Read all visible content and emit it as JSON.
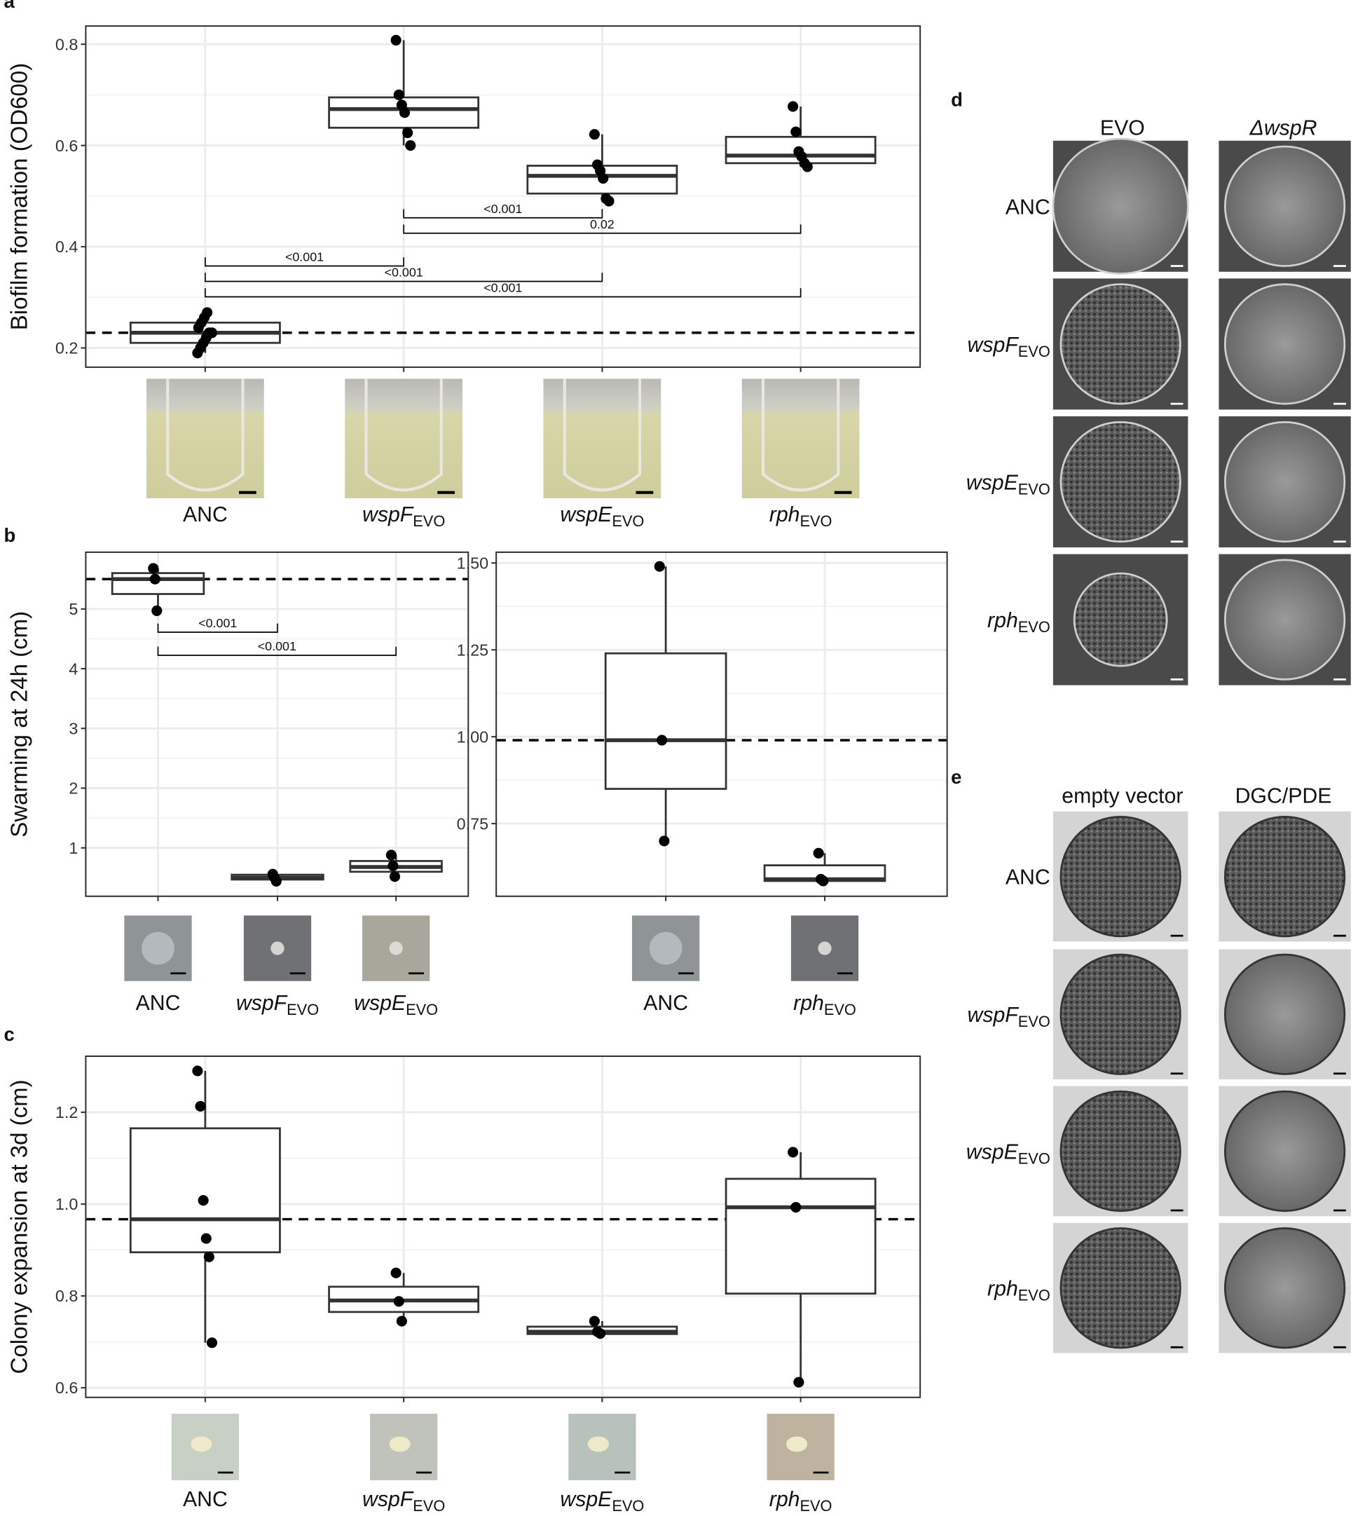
{
  "chart_data": [
    {
      "panel": "a",
      "type": "box",
      "y_label": "Biofilm formation (OD600)",
      "categories": [
        "ANC",
        {
          "text": "wspF",
          "sub": "EVO"
        },
        {
          "text": "wspE",
          "sub": "EVO"
        },
        {
          "text": "rph",
          "sub": "EVO"
        }
      ],
      "ylim": [
        0.162,
        0.836
      ],
      "yticks": [
        0.2,
        0.4,
        0.6,
        0.8
      ],
      "grid": true,
      "reference_line": 0.23,
      "boxes": [
        {
          "q1": 0.21,
          "median": 0.23,
          "q3": 0.25,
          "whisker_low": 0.19,
          "whisker_high": 0.27,
          "points": [
            0.19,
            0.2,
            0.21,
            0.22,
            0.23,
            0.23,
            0.24,
            0.25,
            0.26,
            0.27
          ]
        },
        {
          "q1": 0.635,
          "median": 0.672,
          "q3": 0.695,
          "whisker_low": 0.6,
          "whisker_high": 0.808,
          "points": [
            0.808,
            0.7,
            0.68,
            0.665,
            0.625,
            0.6
          ]
        },
        {
          "q1": 0.505,
          "median": 0.54,
          "q3": 0.56,
          "whisker_low": 0.49,
          "whisker_high": 0.622,
          "points": [
            0.622,
            0.562,
            0.55,
            0.535,
            0.495,
            0.49
          ]
        },
        {
          "q1": 0.565,
          "median": 0.58,
          "q3": 0.617,
          "whisker_low": 0.558,
          "whisker_high": 0.677,
          "points": [
            0.677,
            0.627,
            0.588,
            0.578,
            0.565,
            0.558
          ]
        }
      ],
      "comparisons": [
        {
          "from": 1,
          "to": 2,
          "label": "<0.001"
        },
        {
          "from": 1,
          "to": 3,
          "label": "0.02"
        },
        {
          "from": 0,
          "to": 1,
          "label": "<0.001"
        },
        {
          "from": 0,
          "to": 2,
          "label": "<0.001"
        },
        {
          "from": 0,
          "to": 3,
          "label": "<0.001"
        }
      ]
    },
    {
      "panel": "b",
      "type": "box",
      "y_label": "Swarming at 24h (cm)",
      "categories": [
        "ANC",
        {
          "text": "wspF",
          "sub": "EVO"
        },
        {
          "text": "wspE",
          "sub": "EVO"
        }
      ],
      "ylim": [
        0.19,
        5.95
      ],
      "yticks": [
        1,
        2,
        3,
        4,
        5
      ],
      "grid": true,
      "reference_line": 5.5,
      "boxes": [
        {
          "q1": 5.25,
          "median": 5.5,
          "q3": 5.6,
          "whisker_low": 4.97,
          "whisker_high": 5.68,
          "points": [
            5.68,
            5.5,
            4.97
          ]
        },
        {
          "q1": 0.47,
          "median": 0.5,
          "q3": 0.55,
          "whisker_low": 0.44,
          "whisker_high": 0.56,
          "points": [
            0.56,
            0.5,
            0.44
          ]
        },
        {
          "q1": 0.6,
          "median": 0.68,
          "q3": 0.78,
          "whisker_low": 0.52,
          "whisker_high": 0.88,
          "points": [
            0.88,
            0.7,
            0.52
          ]
        }
      ],
      "comparisons": [
        {
          "from": 0,
          "to": 1,
          "label": "<0.001"
        },
        {
          "from": 0,
          "to": 2,
          "label": "<0.001"
        }
      ]
    },
    {
      "type": "box",
      "categories": [
        "ANC",
        {
          "text": "rph",
          "sub": "EVO"
        }
      ],
      "ylim": [
        0.541,
        1.531
      ],
      "yticks": [
        0.75,
        {
          "value": 1,
          "label": "1.00"
        },
        1.25,
        {
          "value": 1.5,
          "label": "1.50"
        }
      ],
      "grid": true,
      "reference_line": 0.99,
      "boxes": [
        {
          "q1": 0.85,
          "median": 0.99,
          "q3": 1.24,
          "whisker_low": 0.7,
          "whisker_high": 1.49,
          "points": [
            1.49,
            0.99,
            0.7
          ]
        },
        {
          "q1": 0.585,
          "median": 0.59,
          "q3": 0.63,
          "whisker_low": 0.585,
          "whisker_high": 0.665,
          "points": [
            0.665,
            0.59,
            0.585
          ]
        }
      ]
    },
    {
      "panel": "c",
      "type": "box",
      "y_label": "Colony expansion at 3d (cm)",
      "categories": [
        "ANC",
        {
          "text": "wspF",
          "sub": "EVO"
        },
        {
          "text": "wspE",
          "sub": "EVO"
        },
        {
          "text": "rph",
          "sub": "EVO"
        }
      ],
      "ylim": [
        0.579,
        1.322
      ],
      "yticks": [
        0.6,
        0.8,
        {
          "value": 1,
          "label": "1.0"
        },
        1.2
      ],
      "grid": true,
      "reference_line": 0.967,
      "boxes": [
        {
          "q1": 0.895,
          "median": 0.967,
          "q3": 1.165,
          "whisker_low": 0.698,
          "whisker_high": 1.29,
          "points": [
            1.29,
            1.213,
            1.008,
            0.925,
            0.885,
            0.698
          ]
        },
        {
          "q1": 0.765,
          "median": 0.79,
          "q3": 0.82,
          "whisker_low": 0.745,
          "whisker_high": 0.85,
          "points": [
            0.85,
            0.788,
            0.745
          ]
        },
        {
          "q1": 0.717,
          "median": 0.722,
          "q3": 0.733,
          "whisker_low": 0.717,
          "whisker_high": 0.745,
          "points": [
            0.745,
            0.722,
            0.718
          ]
        },
        {
          "q1": 0.805,
          "median": 0.993,
          "q3": 1.055,
          "whisker_low": 0.612,
          "whisker_high": 1.113,
          "points": [
            1.113,
            0.993,
            0.612
          ]
        }
      ]
    }
  ],
  "image_panels": [
    {
      "panel": "d",
      "columns": [
        "EVO",
        "ΔwspR"
      ],
      "rows": [
        "ANC",
        {
          "text": "wspF",
          "sub": "EVO"
        },
        {
          "text": "wspE",
          "sub": "EVO"
        },
        {
          "text": "rph",
          "sub": "EVO"
        }
      ]
    },
    {
      "panel": "e",
      "columns": [
        "empty vector",
        "DGC/PDE"
      ],
      "rows": [
        "ANC",
        {
          "text": "wspF",
          "sub": "EVO"
        },
        {
          "text": "wspE",
          "sub": "EVO"
        },
        {
          "text": "rph",
          "sub": "EVO"
        }
      ]
    }
  ]
}
